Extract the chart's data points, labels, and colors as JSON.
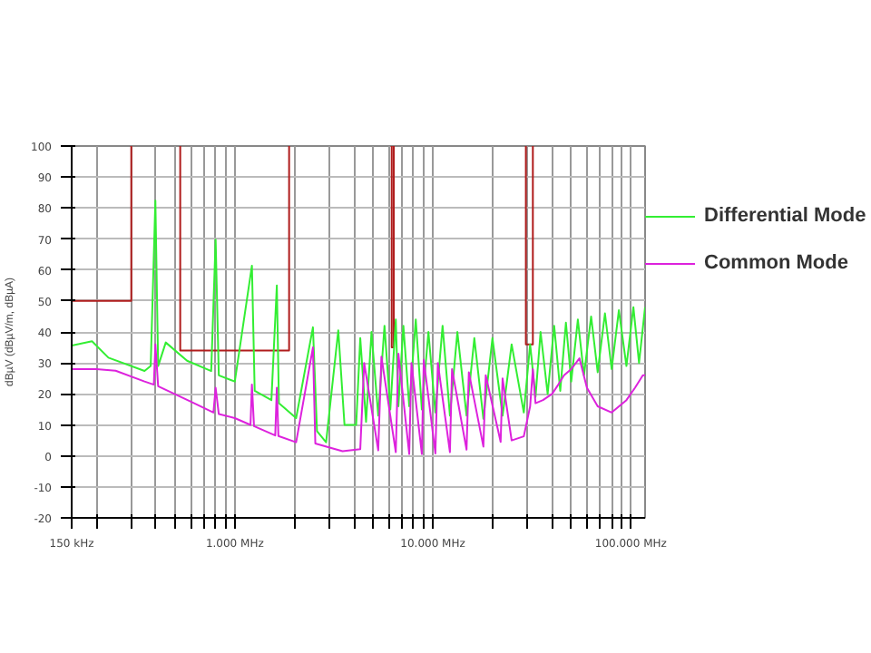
{
  "chart_data": {
    "type": "line",
    "ylabel": "dBµV (dBµV/m, dBµA)",
    "log": "x",
    "grid": true,
    "legend": "right",
    "xlim": [
      150,
      118000
    ],
    "ylim": [
      -20,
      100
    ],
    "yticks": [
      -20,
      -10,
      0,
      10,
      20,
      30,
      40,
      50,
      60,
      70,
      80,
      90,
      100
    ],
    "xticks": [
      {
        "value": 150,
        "label": "150 kHz"
      },
      {
        "value": 200,
        "label": null
      },
      {
        "value": 300,
        "label": null
      },
      {
        "value": 400,
        "label": null
      },
      {
        "value": 500,
        "label": null
      },
      {
        "value": 600,
        "label": null
      },
      {
        "value": 700,
        "label": null
      },
      {
        "value": 800,
        "label": null
      },
      {
        "value": 900,
        "label": null
      },
      {
        "value": 1000,
        "label": "1.000 MHz"
      },
      {
        "value": 2000,
        "label": null
      },
      {
        "value": 3000,
        "label": null
      },
      {
        "value": 4000,
        "label": null
      },
      {
        "value": 5000,
        "label": null
      },
      {
        "value": 6000,
        "label": null
      },
      {
        "value": 7000,
        "label": null
      },
      {
        "value": 8000,
        "label": null
      },
      {
        "value": 9000,
        "label": null
      },
      {
        "value": 10000,
        "label": "10.000 MHz"
      },
      {
        "value": 20000,
        "label": null
      },
      {
        "value": 30000,
        "label": null
      },
      {
        "value": 40000,
        "label": null
      },
      {
        "value": 50000,
        "label": null
      },
      {
        "value": 60000,
        "label": null
      },
      {
        "value": 70000,
        "label": null
      },
      {
        "value": 80000,
        "label": null
      },
      {
        "value": 90000,
        "label": null
      },
      {
        "value": 100000,
        "label": "100.000 MHz"
      }
    ],
    "series": [
      {
        "color": "#b01c1c",
        "x": [
          150,
          300,
          300,
          null,
          530,
          530,
          1880,
          1880,
          null,
          6200,
          6200,
          6350,
          6350,
          null,
          29500,
          29500,
          32000,
          32000
        ],
        "values": [
          50,
          50,
          100,
          null,
          100,
          34,
          34,
          100,
          null,
          100,
          35,
          35,
          100,
          null,
          100,
          36,
          36,
          100
        ]
      },
      {
        "name": "Differential Mode",
        "color": "#33ee33",
        "x": [
          150,
          190,
          230,
          350,
          376,
          397,
          410,
          448,
          574,
          760,
          800,
          830,
          1000,
          1220,
          1260,
          1530,
          1630,
          1670,
          2040,
          2480,
          2600,
          2890,
          3330,
          3580,
          4100,
          4300,
          4600,
          4900,
          5300,
          5700,
          6100,
          6500,
          6700,
          7100,
          7600,
          8200,
          8800,
          9500,
          10300,
          11200,
          12200,
          13300,
          14800,
          16200,
          18000,
          20000,
          22500,
          25000,
          28800,
          31000,
          33000,
          35000,
          38000,
          41000,
          44000,
          47000,
          50000,
          54000,
          58000,
          63000,
          68000,
          74000,
          80000,
          87000,
          95000,
          103000,
          110000,
          118000
        ],
        "values": [
          35.6,
          37,
          31.7,
          27.4,
          29,
          82.4,
          29,
          36.6,
          30.7,
          27.4,
          69.8,
          26,
          24,
          61.4,
          21,
          18,
          55,
          17,
          12.2,
          41.5,
          8,
          4.4,
          40.5,
          10,
          10,
          38,
          11,
          40,
          13,
          42,
          15,
          44,
          16,
          42,
          16,
          44,
          15,
          40,
          14,
          42,
          13,
          40,
          13,
          38,
          12,
          38,
          13,
          36,
          14,
          36,
          19,
          40,
          20,
          42,
          21,
          43,
          24,
          44,
          26,
          45,
          27,
          46,
          28,
          47,
          29,
          48,
          30,
          48
        ]
      },
      {
        "name": "Common Mode",
        "color": "#dd22dd",
        "x": [
          150,
          200,
          250,
          350,
          390,
          397,
          410,
          600,
          780,
          800,
          830,
          1000,
          1200,
          1220,
          1250,
          1600,
          1630,
          1660,
          2040,
          2480,
          2550,
          3500,
          4300,
          4500,
          5300,
          5500,
          6500,
          6700,
          7600,
          7800,
          8800,
          9000,
          10300,
          10600,
          12200,
          12500,
          14800,
          15200,
          18000,
          18500,
          22000,
          22500,
          25000,
          28800,
          31000,
          32000,
          33000,
          36000,
          40000,
          43000,
          46000,
          50000,
          55000,
          60000,
          68000,
          80000,
          95000,
          105000,
          115000,
          118000
        ],
        "values": [
          28,
          28,
          27.5,
          24,
          23,
          36,
          22.5,
          17.5,
          14,
          22,
          13.5,
          12.2,
          10,
          23,
          9.6,
          6.6,
          22,
          6.4,
          4.4,
          35,
          4,
          1.5,
          2.2,
          30,
          1.8,
          32,
          1.2,
          33,
          0.6,
          30,
          0.6,
          31,
          0.8,
          30,
          1.2,
          28,
          2,
          27,
          3,
          26,
          4.5,
          25,
          5,
          6.3,
          16,
          28,
          17,
          18,
          20,
          23,
          26,
          28,
          31.5,
          22,
          16,
          14,
          18,
          22,
          26,
          26
        ]
      }
    ]
  }
}
